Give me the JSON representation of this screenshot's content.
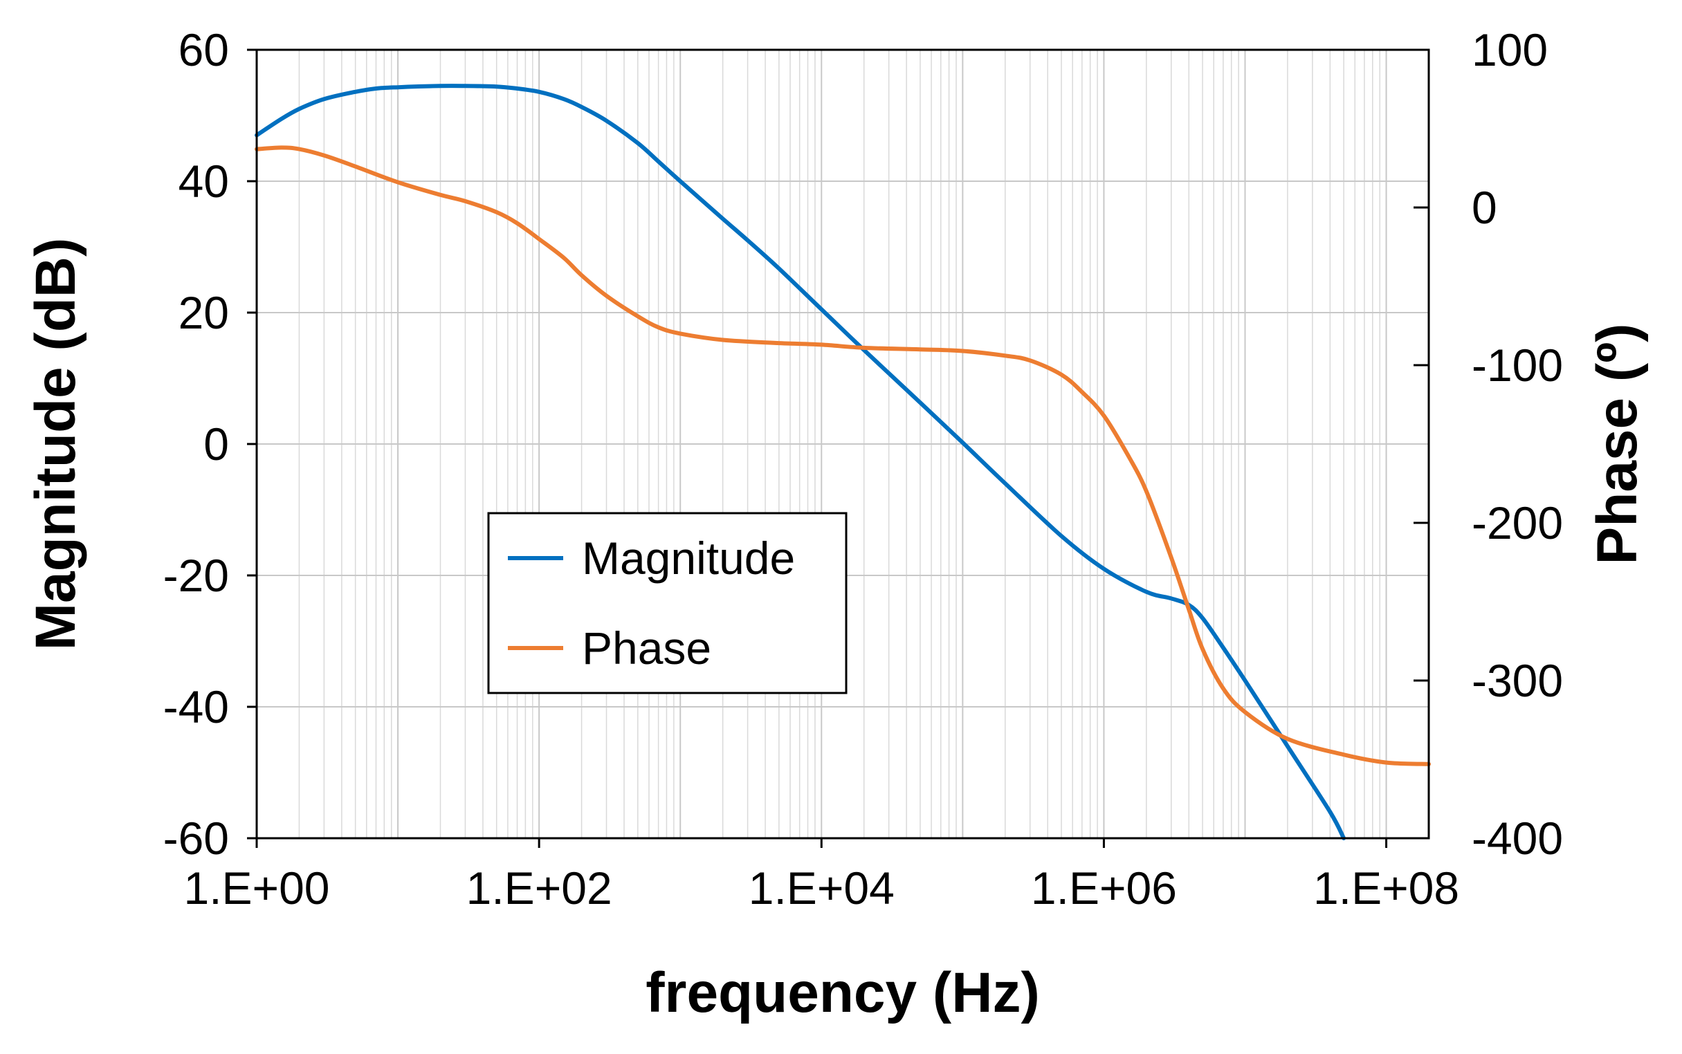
{
  "chart_data": {
    "type": "line",
    "title": "",
    "xlabel": "frequency (Hz)",
    "ylabel": "Magnitude (dB)",
    "y2label": "Phase (º)",
    "xscale": "log",
    "xlim": [
      1,
      200000000
    ],
    "ylim": [
      -60,
      60
    ],
    "y2lim": [
      -400,
      100
    ],
    "grid": true,
    "legend_position": "center-left",
    "x_ticks": [
      {
        "value": 1,
        "label": "1.E+00"
      },
      {
        "value": 100,
        "label": "1.E+02"
      },
      {
        "value": 10000,
        "label": "1.E+04"
      },
      {
        "value": 1000000,
        "label": "1.E+06"
      },
      {
        "value": 100000000,
        "label": "1.E+08"
      }
    ],
    "y_ticks": [
      {
        "value": 60,
        "label": "60"
      },
      {
        "value": 40,
        "label": "40"
      },
      {
        "value": 20,
        "label": "20"
      },
      {
        "value": 0,
        "label": "0"
      },
      {
        "value": -20,
        "label": "-20"
      },
      {
        "value": -40,
        "label": "-40"
      },
      {
        "value": -60,
        "label": "-60"
      }
    ],
    "y2_ticks": [
      {
        "value": 100,
        "label": "100"
      },
      {
        "value": 0,
        "label": "0"
      },
      {
        "value": -100,
        "label": "-100"
      },
      {
        "value": -200,
        "label": "-200"
      },
      {
        "value": -300,
        "label": "-300"
      },
      {
        "value": -400,
        "label": "-400"
      }
    ],
    "series": [
      {
        "name": "Magnitude",
        "axis": "left",
        "color": "#0070C0",
        "points": [
          [
            1,
            47
          ],
          [
            1.5,
            49.5
          ],
          [
            2,
            51
          ],
          [
            3,
            52.5
          ],
          [
            5,
            53.6
          ],
          [
            7,
            54.1
          ],
          [
            10,
            54.3
          ],
          [
            20,
            54.5
          ],
          [
            30,
            54.5
          ],
          [
            50,
            54.4
          ],
          [
            70,
            54.1
          ],
          [
            100,
            53.6
          ],
          [
            150,
            52.5
          ],
          [
            200,
            51.3
          ],
          [
            300,
            49.2
          ],
          [
            500,
            45.8
          ],
          [
            700,
            43.0
          ],
          [
            1000,
            40.0
          ],
          [
            2000,
            34.3
          ],
          [
            3000,
            31.0
          ],
          [
            5000,
            26.7
          ],
          [
            10000,
            20.5
          ],
          [
            20000,
            14.3
          ],
          [
            50000,
            6.3
          ],
          [
            100000,
            0.2
          ],
          [
            200000,
            -6.0
          ],
          [
            500000,
            -14.0
          ],
          [
            1000000,
            -19.0
          ],
          [
            2000000,
            -22.5
          ],
          [
            3000000,
            -23.5
          ],
          [
            4000000,
            -24.5
          ],
          [
            5000000,
            -26.5
          ],
          [
            7000000,
            -31.0
          ],
          [
            10000000,
            -36.0
          ],
          [
            20000000,
            -46.0
          ],
          [
            40000000,
            -56.0
          ],
          [
            50000000,
            -60.0
          ]
        ]
      },
      {
        "name": "Phase",
        "axis": "right",
        "color": "#ED7D31",
        "points": [
          [
            1,
            37
          ],
          [
            1.5,
            38
          ],
          [
            2,
            37
          ],
          [
            3,
            33
          ],
          [
            5,
            26
          ],
          [
            10,
            16
          ],
          [
            20,
            8
          ],
          [
            30,
            4
          ],
          [
            50,
            -3
          ],
          [
            70,
            -10
          ],
          [
            100,
            -20
          ],
          [
            150,
            -32
          ],
          [
            200,
            -43
          ],
          [
            300,
            -56
          ],
          [
            500,
            -69
          ],
          [
            700,
            -76
          ],
          [
            1000,
            -80
          ],
          [
            2000,
            -84
          ],
          [
            5000,
            -86
          ],
          [
            10000,
            -87
          ],
          [
            20000,
            -89
          ],
          [
            50000,
            -90
          ],
          [
            100000,
            -91
          ],
          [
            200000,
            -94
          ],
          [
            300000,
            -97
          ],
          [
            500000,
            -106
          ],
          [
            700000,
            -117
          ],
          [
            1000000,
            -132
          ],
          [
            1500000,
            -158
          ],
          [
            2000000,
            -180
          ],
          [
            3000000,
            -222
          ],
          [
            4000000,
            -255
          ],
          [
            5000000,
            -280
          ],
          [
            7000000,
            -305
          ],
          [
            10000000,
            -320
          ],
          [
            20000000,
            -337
          ],
          [
            50000000,
            -347
          ],
          [
            100000000,
            -352
          ],
          [
            200000000,
            -353
          ]
        ]
      }
    ]
  }
}
